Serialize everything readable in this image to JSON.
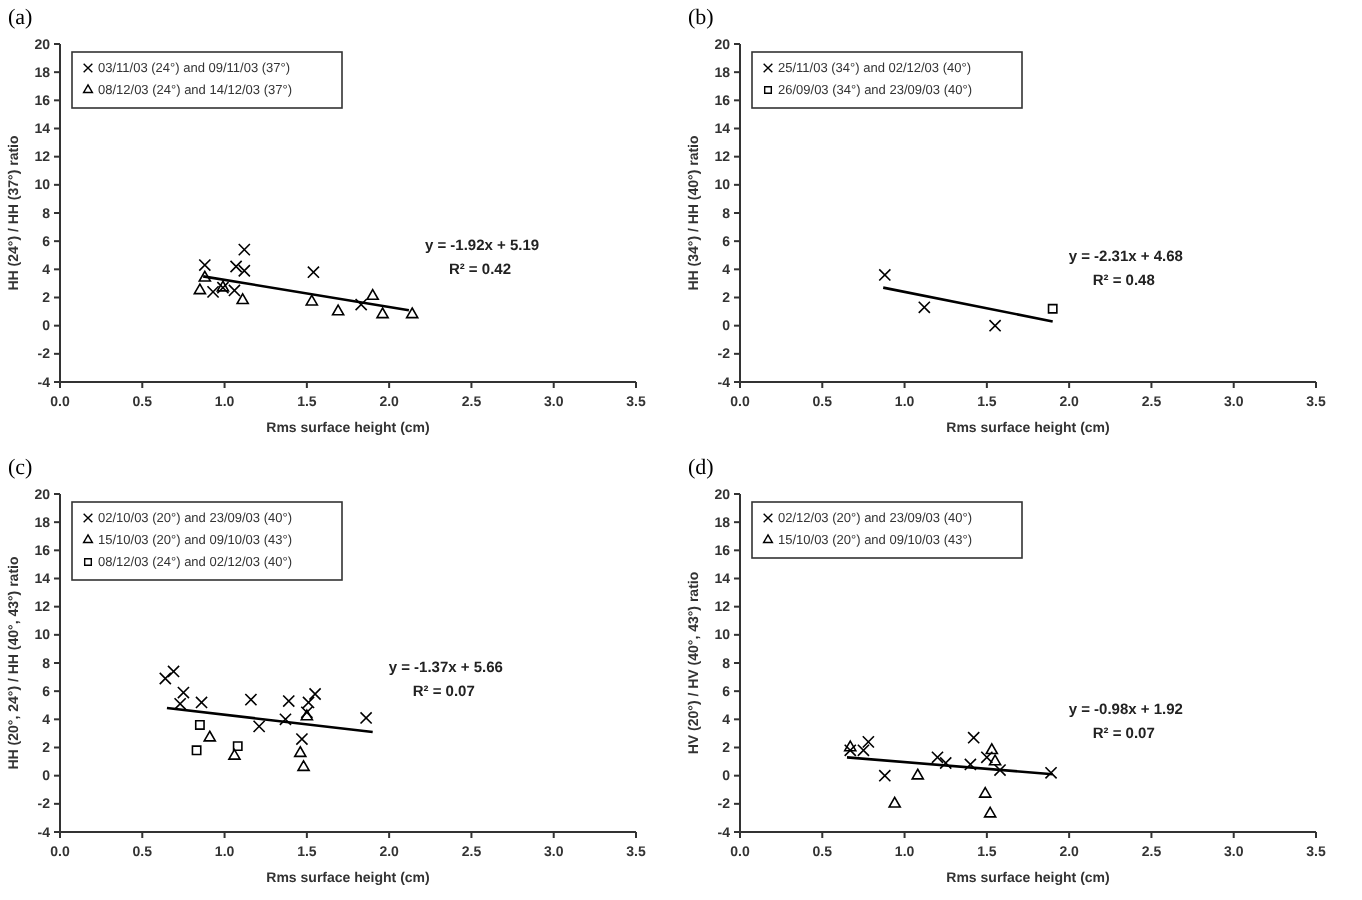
{
  "chart_data": [
    {
      "type": "scatter",
      "title": "(a)",
      "xlabel": "Rms surface height (cm)",
      "ylabel": "HH (24°) / HH (37°) ratio",
      "xlim": [
        0,
        3.5
      ],
      "xticks": [
        {
          "value": 0,
          "label": "0.0"
        },
        0.5,
        {
          "value": 1,
          "label": "1.0"
        },
        1.5,
        {
          "value": 2,
          "label": "2.0"
        },
        2.5,
        {
          "value": 3,
          "label": "3.0"
        },
        3.5
      ],
      "ylim": [
        -4,
        20
      ],
      "yticks": [
        -4,
        -2,
        0,
        2,
        4,
        6,
        8,
        10,
        12,
        14,
        16,
        18,
        20
      ],
      "legend": "top left",
      "annotations": [
        "y = -1.92x + 5.19",
        "R² = 0.42"
      ],
      "series": [
        {
          "name": "03/11/03 (24°) and 09/11/03 (37°)",
          "marker": "cross",
          "color": "#000000",
          "x": [
            0.88,
            0.93,
            0.99,
            1.07,
            1.12,
            1.12,
            1.06,
            1.54,
            1.83
          ],
          "values": [
            4.3,
            2.4,
            2.7,
            4.2,
            3.9,
            5.4,
            2.5,
            3.8,
            1.5
          ]
        },
        {
          "name": "08/12/03 (24°) and 14/12/03 (37°)",
          "marker": "triangle",
          "color": "#000000",
          "x": [
            0.85,
            0.88,
            0.99,
            1.11,
            1.53,
            1.69,
            1.9,
            1.96,
            2.14
          ],
          "values": [
            2.5,
            3.4,
            2.7,
            1.8,
            1.7,
            1.0,
            2.1,
            0.8,
            0.8
          ]
        },
        {
          "type": "line",
          "color": "#000000",
          "x": [
            0.87,
            2.12
          ],
          "values": [
            3.5,
            1.1
          ]
        }
      ]
    },
    {
      "type": "scatter",
      "title": "(b)",
      "xlabel": "Rms surface height (cm)",
      "ylabel": "HH (34°) / HH (40°) ratio",
      "xlim": [
        0,
        3.5
      ],
      "xticks": [
        {
          "value": 0,
          "label": "0.0"
        },
        0.5,
        {
          "value": 1,
          "label": "1.0"
        },
        1.5,
        {
          "value": 2,
          "label": "2.0"
        },
        2.5,
        {
          "value": 3,
          "label": "3.0"
        },
        3.5
      ],
      "ylim": [
        -4,
        20
      ],
      "yticks": [
        -4,
        -2,
        0,
        2,
        4,
        6,
        8,
        10,
        12,
        14,
        16,
        18,
        20
      ],
      "legend": "top left",
      "annotations": [
        "y = -2.31x + 4.68",
        "R² = 0.48"
      ],
      "series": [
        {
          "name": "25/11/03 (34°) and 02/12/03 (40°)",
          "marker": "cross",
          "color": "#000000",
          "x": [
            0.88,
            1.12,
            1.55
          ],
          "values": [
            3.6,
            1.3,
            0.0
          ]
        },
        {
          "name": "26/09/03 (34°) and 23/09/03 (40°)",
          "marker": "square",
          "color": "#000000",
          "x": [
            1.9
          ],
          "values": [
            1.2
          ]
        },
        {
          "type": "line",
          "color": "#000000",
          "x": [
            0.87,
            1.9
          ],
          "values": [
            2.7,
            0.3
          ]
        }
      ]
    },
    {
      "type": "scatter",
      "title": "(c)",
      "xlabel": "Rms surface height (cm)",
      "ylabel": "HH (20°, 24°) / HH (40°, 43°) ratio",
      "xlim": [
        0,
        3.5
      ],
      "xticks": [
        {
          "value": 0,
          "label": "0.0"
        },
        0.5,
        {
          "value": 1,
          "label": "1.0"
        },
        1.5,
        {
          "value": 2,
          "label": "2.0"
        },
        2.5,
        {
          "value": 3,
          "label": "3.0"
        },
        3.5
      ],
      "ylim": [
        -4,
        20
      ],
      "yticks": [
        -4,
        -2,
        0,
        2,
        4,
        6,
        8,
        10,
        12,
        14,
        16,
        18,
        20
      ],
      "legend": "top left",
      "annotations": [
        "y = -1.37x + 5.66",
        "R² = 0.07"
      ],
      "series": [
        {
          "name": "02/10/03 (20°) and 23/09/03 (40°)",
          "marker": "cross",
          "color": "#000000",
          "x": [
            0.64,
            0.69,
            0.73,
            0.75,
            0.86,
            1.16,
            1.21,
            1.39,
            1.37,
            1.47,
            1.51,
            1.5,
            1.55,
            1.86
          ],
          "values": [
            6.9,
            7.4,
            5.1,
            5.9,
            5.2,
            5.4,
            3.5,
            5.3,
            4.0,
            2.6,
            5.2,
            4.5,
            5.8,
            4.1
          ]
        },
        {
          "name": "15/10/03 (20°) and 09/10/03 (43°)",
          "marker": "triangle",
          "color": "#000000",
          "x": [
            0.91,
            1.06,
            1.46,
            1.48,
            1.5
          ],
          "values": [
            2.7,
            1.4,
            1.6,
            0.6,
            4.2
          ]
        },
        {
          "name": "08/12/03 (24°) and 02/12/03 (40°)",
          "marker": "square",
          "color": "#000000",
          "x": [
            0.85,
            0.83,
            1.08
          ],
          "values": [
            3.6,
            1.8,
            2.1
          ]
        },
        {
          "type": "line",
          "color": "#000000",
          "x": [
            0.65,
            1.9
          ],
          "values": [
            4.8,
            3.1
          ]
        }
      ]
    },
    {
      "type": "scatter",
      "title": "(d)",
      "xlabel": "Rms surface height (cm)",
      "ylabel": "HV (20°) / HV (40°, 43°) ratio",
      "xlim": [
        0,
        3.5
      ],
      "xticks": [
        {
          "value": 0,
          "label": "0.0"
        },
        0.5,
        {
          "value": 1,
          "label": "1.0"
        },
        1.5,
        {
          "value": 2,
          "label": "2.0"
        },
        2.5,
        {
          "value": 3,
          "label": "3.0"
        },
        3.5
      ],
      "ylim": [
        -4,
        20
      ],
      "yticks": [
        -4,
        -2,
        0,
        2,
        4,
        6,
        8,
        10,
        12,
        14,
        16,
        18,
        20
      ],
      "legend": "top left",
      "annotations": [
        "y = -0.98x + 1.92",
        "R² = 0.07"
      ],
      "series": [
        {
          "name": "02/12/03 (20°) and 23/09/03 (40°)",
          "marker": "cross",
          "color": "#000000",
          "x": [
            0.67,
            0.75,
            0.78,
            0.88,
            1.2,
            1.25,
            1.4,
            1.42,
            1.5,
            1.58,
            1.89
          ],
          "values": [
            1.8,
            1.8,
            2.4,
            0.0,
            1.3,
            0.9,
            0.8,
            2.7,
            1.3,
            0.4,
            0.2
          ]
        },
        {
          "name": "15/10/03 (20°) and 09/10/03 (43°)",
          "marker": "triangle",
          "color": "#000000",
          "x": [
            0.67,
            0.94,
            1.08,
            1.49,
            1.52,
            1.53,
            1.55
          ],
          "values": [
            2.0,
            -2.0,
            0.0,
            -1.3,
            -2.7,
            1.8,
            1.0
          ]
        },
        {
          "type": "line",
          "color": "#000000",
          "x": [
            0.65,
            1.9
          ],
          "values": [
            1.3,
            0.1
          ]
        }
      ]
    }
  ]
}
